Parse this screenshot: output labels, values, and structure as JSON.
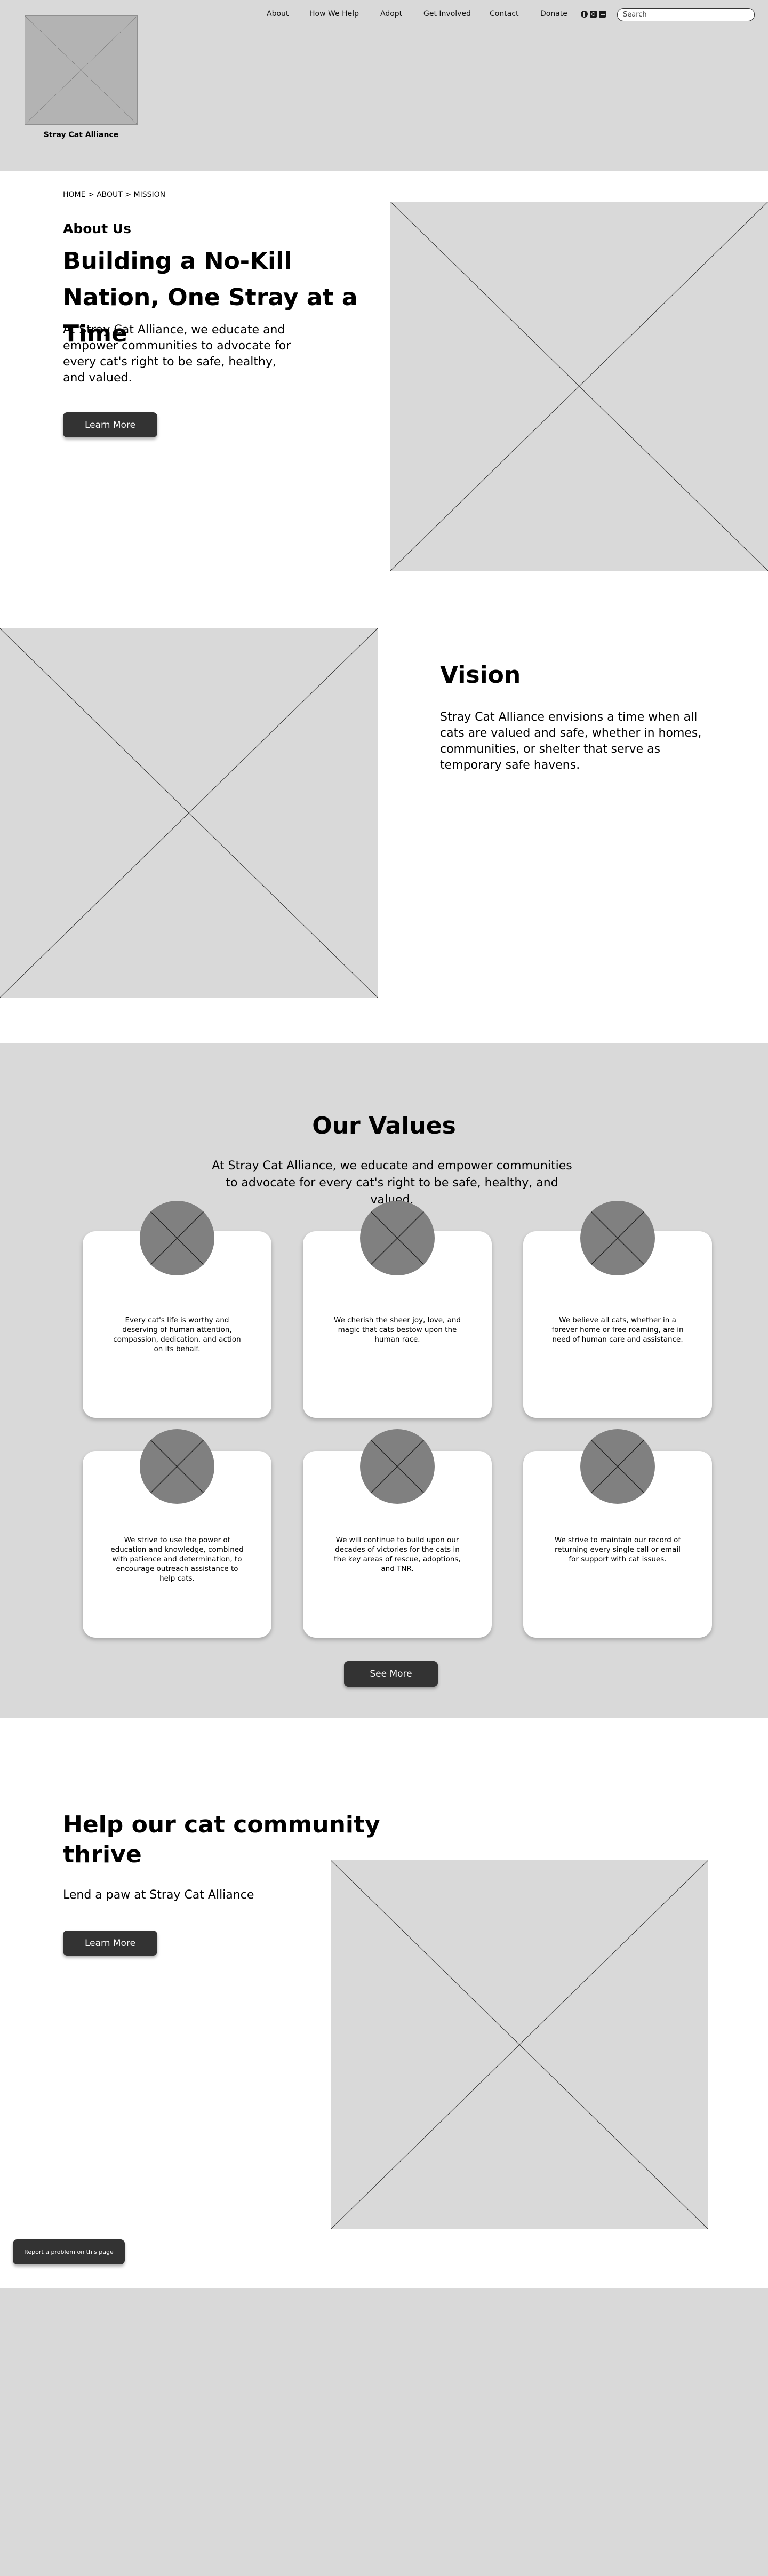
{
  "header": {
    "logo_text": "Stray Cat Alliance",
    "nav": [
      "About",
      "How We Help",
      "Adopt",
      "Get Involved",
      "Contact",
      "Donate"
    ],
    "social_icons": [
      "facebook-icon",
      "instagram-icon",
      "twitter-icon"
    ],
    "search_placeholder": "Search"
  },
  "hero": {
    "breadcrumb": "HOME > ABOUT > MISSION",
    "eyebrow": "About Us",
    "title": "Building a No-Kill Nation, One Stray at a Time",
    "description": "At Stray Cat Alliance, we educate and empower communities to advocate for every cat's right to be safe, healthy, and valued.",
    "button": "Learn More"
  },
  "vision": {
    "title": "Vision",
    "description": "Stray Cat Alliance envisions a time when all cats are valued and safe, whether in homes, communities, or shelter that serve as temporary safe havens."
  },
  "values": {
    "title": "Our Values",
    "description": "At Stray Cat Alliance, we educate and empower communities to advocate for every cat's right to be safe, healthy, and valued.",
    "cards": [
      "Every cat's life is worthy and deserving of human attention, compassion, dedication, and action on its behalf.",
      "We cherish the sheer joy, love, and magic that cats bestow upon the human race.",
      "We believe all cats, whether in a forever home or free roaming, are in need of human care and assistance.",
      "We strive to use the power of education and knowledge, combined with patience and determination, to encourage outreach assistance to help cats.",
      "We will continue to build upon our decades of victories for the cats in the key areas of rescue, adoptions, and TNR.",
      "We strive to maintain our record of returning every single call or email for support with cat issues."
    ],
    "button": "See More"
  },
  "help": {
    "title": "Help our cat community thrive",
    "description": "Lend a paw at Stray Cat Alliance",
    "button": "Learn More"
  },
  "report_button": "Report a problem on this page"
}
